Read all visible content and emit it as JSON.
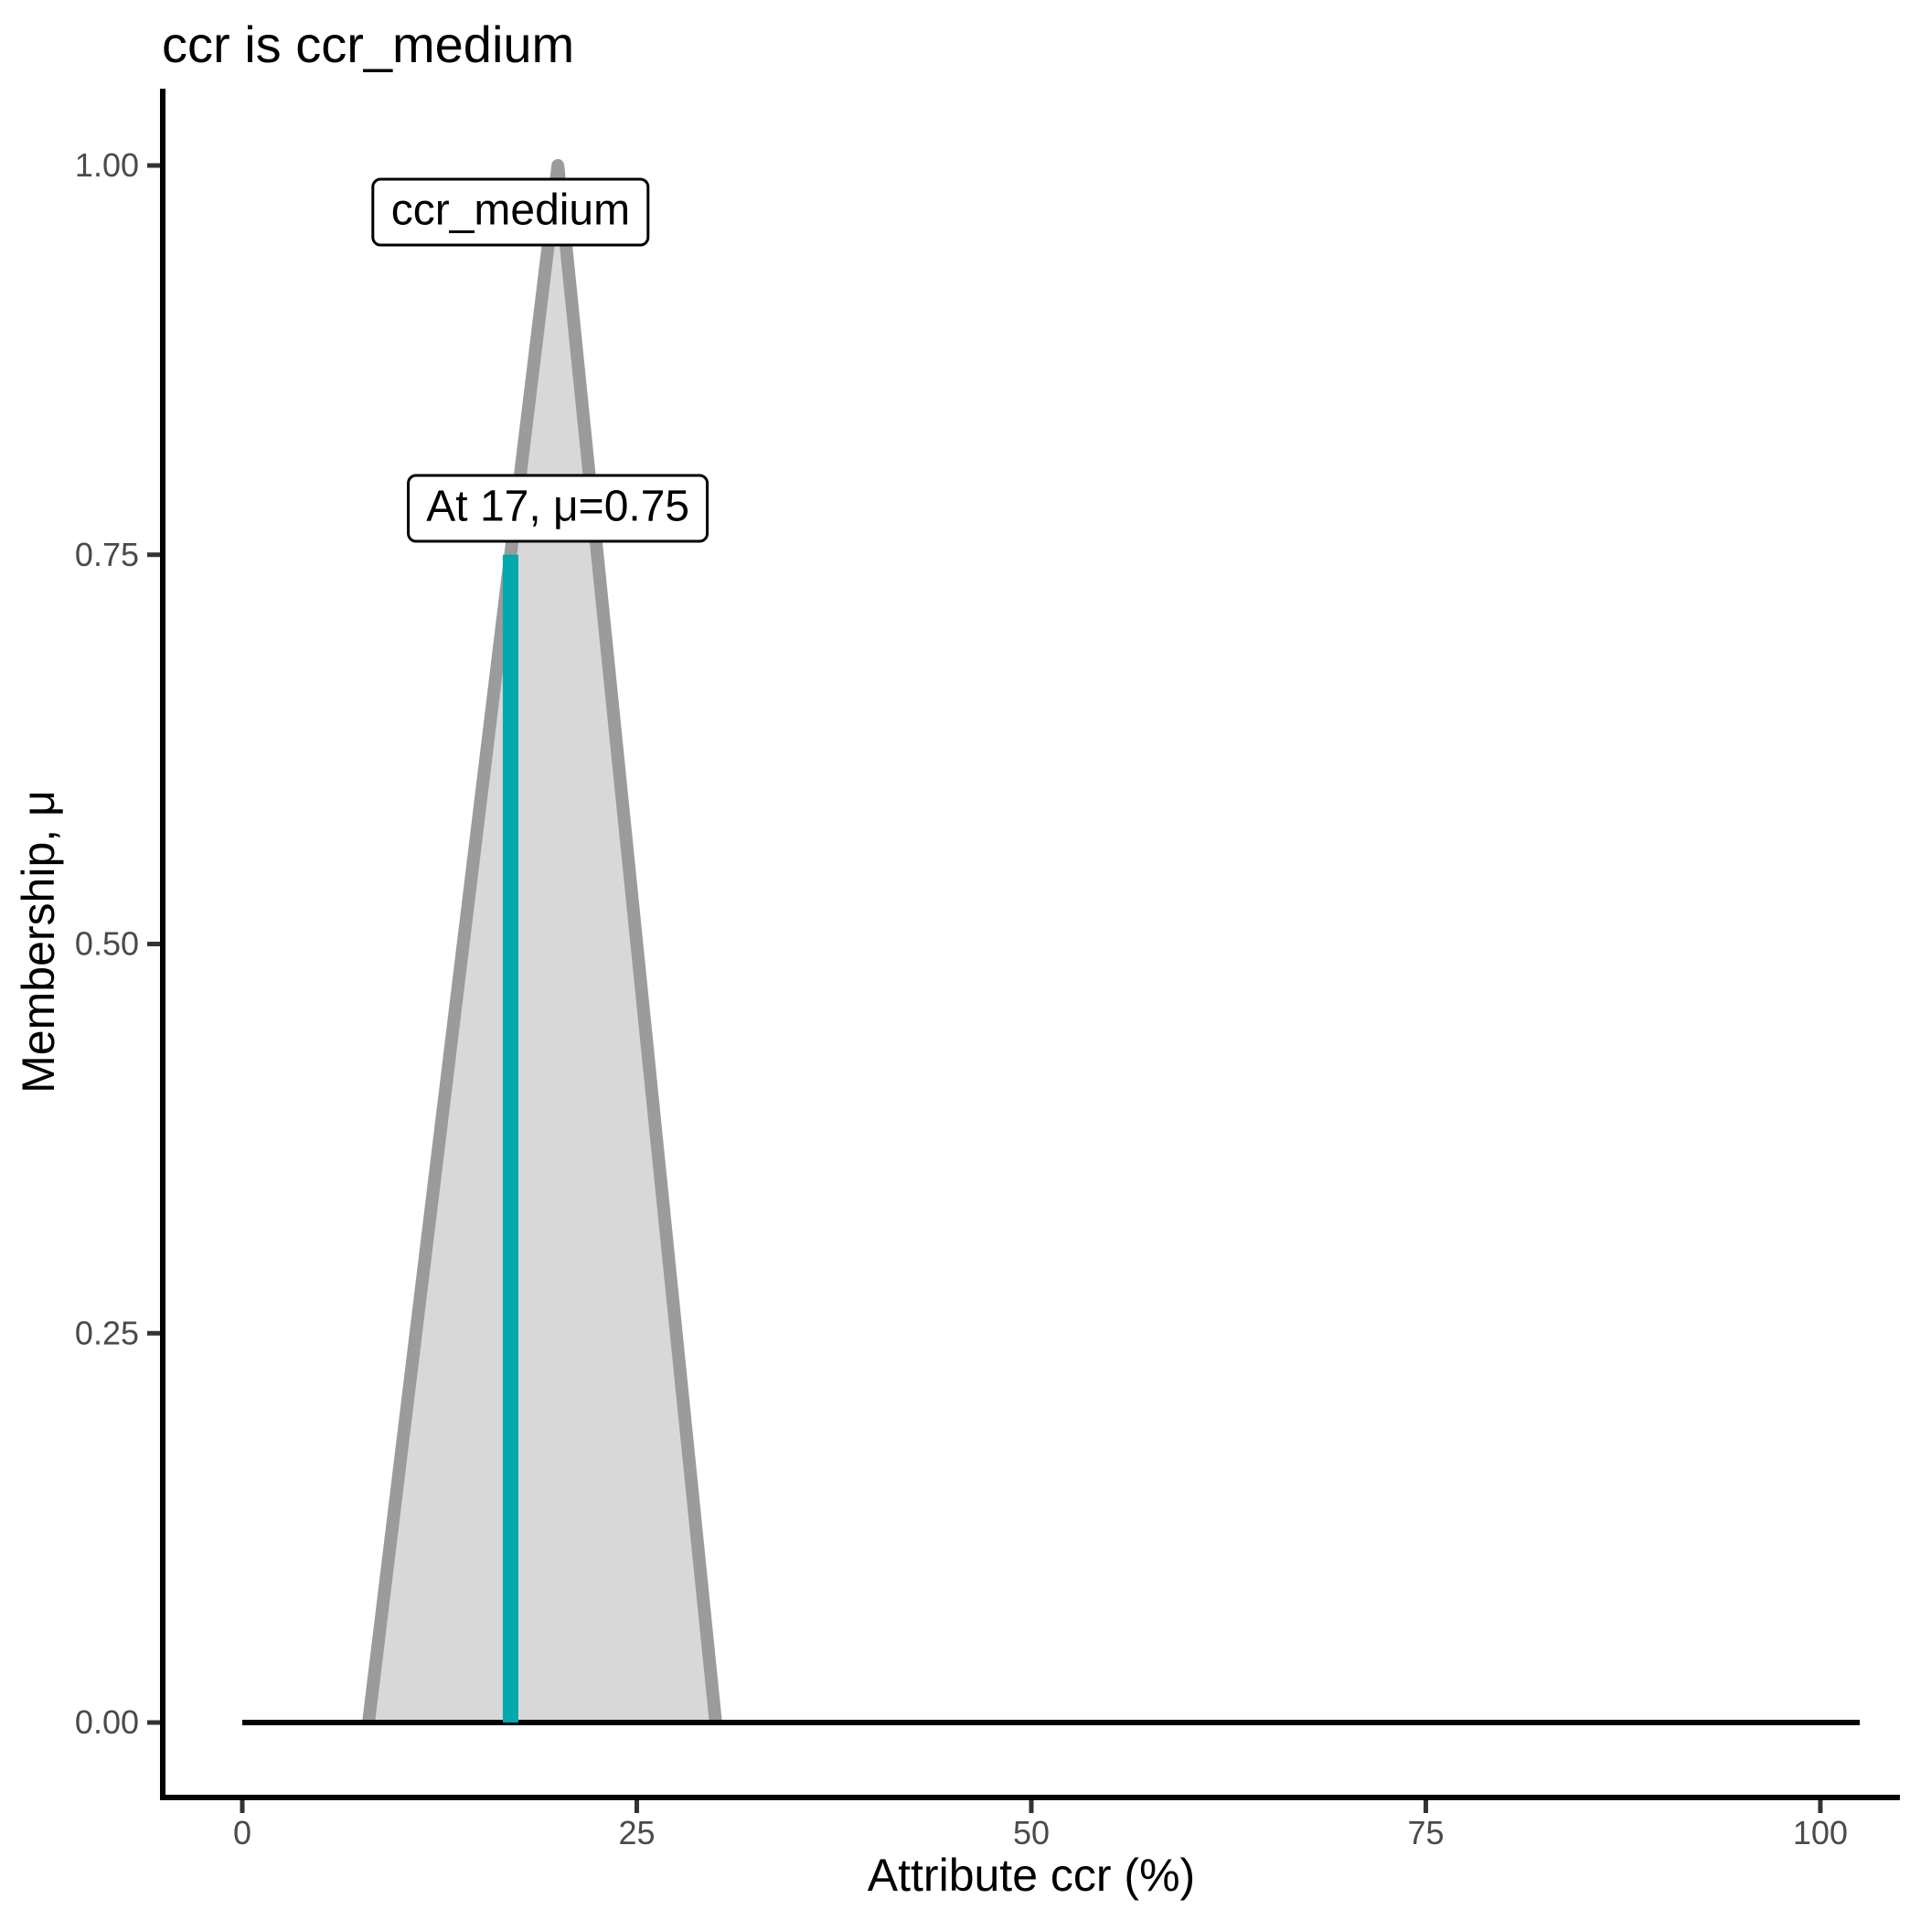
{
  "page": {
    "background_color": "#ffffff"
  },
  "chart_data": {
    "type": "area",
    "title": "ccr is ccr_medium",
    "xlabel": "Attribute ccr (%)",
    "ylabel": "Membership, μ",
    "xlim": [
      0,
      100
    ],
    "ylim": [
      0,
      1
    ],
    "grid": false,
    "legend": "none",
    "x_ticks": [
      {
        "value": 0,
        "label": "0"
      },
      {
        "value": 25,
        "label": "25"
      },
      {
        "value": 50,
        "label": "50"
      },
      {
        "value": 75,
        "label": "75"
      },
      {
        "value": 100,
        "label": "100"
      }
    ],
    "y_ticks": [
      {
        "value": 1.0,
        "label": "1.00"
      },
      {
        "value": 0.75,
        "label": "0.75"
      },
      {
        "value": 0.5,
        "label": "0.50"
      },
      {
        "value": 0.25,
        "label": "0.25"
      },
      {
        "value": 0.0,
        "label": "0.00"
      }
    ],
    "membership_function": {
      "name": "ccr_medium",
      "shape": "triangular",
      "points": [
        [
          8,
          0
        ],
        [
          20,
          1
        ],
        [
          30,
          0
        ]
      ],
      "fill_color": "#d8d8d8",
      "line_color": "#9b9b9b"
    },
    "baseline": {
      "y": 0,
      "x_start": 0,
      "x_end": 102.5,
      "color": "#000000"
    },
    "evaluation": {
      "x": 17,
      "mu": 0.75,
      "line_color": "#00a9ac"
    },
    "annotations": [
      {
        "text": "ccr_medium",
        "x": 17,
        "y": 0.97
      },
      {
        "text": "At 17, μ=0.75",
        "x": 20,
        "y": 0.78
      }
    ],
    "colors": {
      "axis_text": "#4a4a4a",
      "tick_mark": "#333333",
      "spine": "#000000"
    }
  }
}
